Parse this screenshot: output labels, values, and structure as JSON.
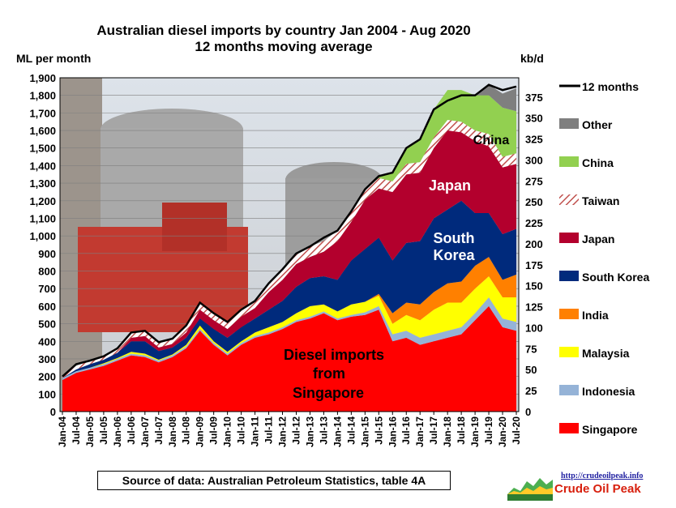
{
  "chart_data": {
    "type": "area",
    "stacked": true,
    "title": "Australian diesel imports by country Jan 2004 - Aug 2020",
    "subtitle": "12 months moving average",
    "ylabel": "ML per month",
    "y2label": "kb/d",
    "ylim": [
      0,
      1900
    ],
    "y2lim": [
      0,
      398
    ],
    "yticks": [
      0,
      100,
      200,
      300,
      400,
      500,
      600,
      700,
      800,
      900,
      1000,
      1100,
      1200,
      1300,
      1400,
      1500,
      1600,
      1700,
      1800,
      1900
    ],
    "yticks_labels": [
      "0",
      "100",
      "200",
      "300",
      "400",
      "500",
      "600",
      "700",
      "800",
      "900",
      "1,000",
      "1,100",
      "1,200",
      "1,300",
      "1,400",
      "1,500",
      "1,600",
      "1,700",
      "1,800",
      "1,900"
    ],
    "y2ticks": [
      0,
      25,
      50,
      75,
      100,
      125,
      150,
      175,
      200,
      225,
      250,
      275,
      300,
      325,
      350,
      375
    ],
    "grid": true,
    "legend_position": "right",
    "x": [
      "Jan-04",
      "Jul-04",
      "Jan-05",
      "Jul-05",
      "Jan-06",
      "Jul-06",
      "Jan-07",
      "Jul-07",
      "Jan-08",
      "Jul-08",
      "Jan-09",
      "Jul-09",
      "Jan-10",
      "Jul-10",
      "Jan-11",
      "Jul-11",
      "Jan-12",
      "Jul-12",
      "Jan-13",
      "Jul-13",
      "Jan-14",
      "Jul-14",
      "Jan-15",
      "Jul-15",
      "Jan-16",
      "Jul-16",
      "Jan-17",
      "Jul-17",
      "Jan-18",
      "Jul-18",
      "Jan-19",
      "Jul-19",
      "Jan-20",
      "Jul-20"
    ],
    "series": [
      {
        "name": "Singapore",
        "color": "#ff0000",
        "pattern": "solid",
        "values": [
          180,
          220,
          240,
          260,
          290,
          320,
          310,
          280,
          310,
          360,
          460,
          380,
          320,
          380,
          420,
          440,
          470,
          510,
          530,
          560,
          520,
          540,
          550,
          580,
          400,
          420,
          380,
          400,
          420,
          440,
          520,
          600,
          480,
          460
        ]
      },
      {
        "name": "Indonesia",
        "color": "#95b3d7",
        "pattern": "solid",
        "values": [
          10,
          10,
          10,
          10,
          10,
          10,
          10,
          10,
          10,
          10,
          10,
          10,
          10,
          10,
          10,
          10,
          10,
          10,
          10,
          10,
          10,
          10,
          15,
          20,
          40,
          40,
          40,
          40,
          40,
          40,
          40,
          50,
          50,
          50
        ]
      },
      {
        "name": "Malaysia",
        "color": "#ffff00",
        "pattern": "solid",
        "values": [
          0,
          0,
          0,
          5,
          5,
          10,
          10,
          5,
          5,
          10,
          20,
          10,
          10,
          10,
          20,
          30,
          30,
          40,
          60,
          40,
          40,
          60,
          60,
          60,
          60,
          90,
          100,
          140,
          160,
          140,
          140,
          120,
          120,
          140
        ]
      },
      {
        "name": "India",
        "color": "#ff8000",
        "pattern": "solid",
        "values": [
          0,
          0,
          0,
          0,
          0,
          0,
          0,
          0,
          0,
          0,
          0,
          0,
          0,
          0,
          0,
          0,
          0,
          0,
          0,
          0,
          0,
          0,
          0,
          10,
          60,
          70,
          90,
          100,
          110,
          120,
          130,
          110,
          100,
          130
        ]
      },
      {
        "name": "South Korea",
        "color": "#002a7c",
        "pattern": "solid",
        "values": [
          0,
          10,
          20,
          20,
          30,
          60,
          70,
          50,
          40,
          40,
          40,
          70,
          80,
          80,
          80,
          100,
          120,
          150,
          160,
          160,
          180,
          250,
          300,
          320,
          300,
          340,
          360,
          420,
          420,
          460,
          300,
          250,
          260,
          260
        ]
      },
      {
        "name": "Japan",
        "color": "#b3002d",
        "pattern": "solid",
        "values": [
          0,
          0,
          0,
          0,
          0,
          20,
          30,
          20,
          20,
          30,
          50,
          50,
          50,
          60,
          60,
          100,
          120,
          130,
          120,
          140,
          220,
          220,
          280,
          280,
          390,
          390,
          390,
          400,
          450,
          390,
          410,
          380,
          380,
          370
        ]
      },
      {
        "name": "Taiwan",
        "color": "#c0504d",
        "pattern": "hatch",
        "values": [
          10,
          20,
          20,
          20,
          25,
          30,
          30,
          30,
          30,
          40,
          40,
          40,
          40,
          40,
          40,
          50,
          60,
          60,
          60,
          60,
          60,
          60,
          60,
          60,
          60,
          60,
          60,
          60,
          60,
          60,
          60,
          70,
          60,
          60
        ]
      },
      {
        "name": "China",
        "color": "#92d050",
        "pattern": "solid",
        "values": [
          0,
          0,
          0,
          0,
          0,
          0,
          0,
          0,
          0,
          0,
          0,
          0,
          0,
          0,
          0,
          0,
          0,
          0,
          0,
          0,
          0,
          0,
          0,
          10,
          50,
          90,
          130,
          160,
          170,
          180,
          200,
          220,
          280,
          240
        ]
      },
      {
        "name": "Other",
        "color": "#7f7f7f",
        "pattern": "solid",
        "values": [
          0,
          0,
          0,
          0,
          0,
          0,
          0,
          0,
          0,
          0,
          0,
          0,
          0,
          0,
          0,
          0,
          0,
          0,
          0,
          0,
          0,
          0,
          0,
          0,
          0,
          0,
          0,
          0,
          0,
          0,
          0,
          60,
          80,
          130
        ]
      }
    ],
    "total_line": {
      "name": "12 months",
      "color": "#000000",
      "values": [
        200,
        270,
        290,
        315,
        360,
        450,
        460,
        395,
        415,
        490,
        620,
        560,
        510,
        580,
        630,
        730,
        810,
        900,
        940,
        990,
        1030,
        1140,
        1265,
        1340,
        1360,
        1500,
        1550,
        1720,
        1770,
        1800,
        1800,
        1860,
        1830,
        1850
      ]
    },
    "legend_order": [
      "12 months",
      "Other",
      "China",
      "Taiwan",
      "Japan",
      "South Korea",
      "India",
      "Malaysia",
      "Indonesia",
      "Singapore"
    ],
    "annotations": [
      {
        "text": "China",
        "color": "#000000"
      },
      {
        "text": "Japan",
        "color": "#ffffff"
      },
      {
        "text": "South",
        "color": "#ffffff"
      },
      {
        "text": "Korea",
        "color": "#ffffff"
      },
      {
        "text": "Diesel imports",
        "color": "#000000"
      },
      {
        "text": "from",
        "color": "#000000"
      },
      {
        "text": "Singapore",
        "color": "#000000"
      }
    ]
  },
  "source_note": "Source of data: Australian Petroleum Statistics, table 4A",
  "logo": {
    "url": "http://crudeoilpeak.info",
    "name": "Crude Oil Peak"
  }
}
